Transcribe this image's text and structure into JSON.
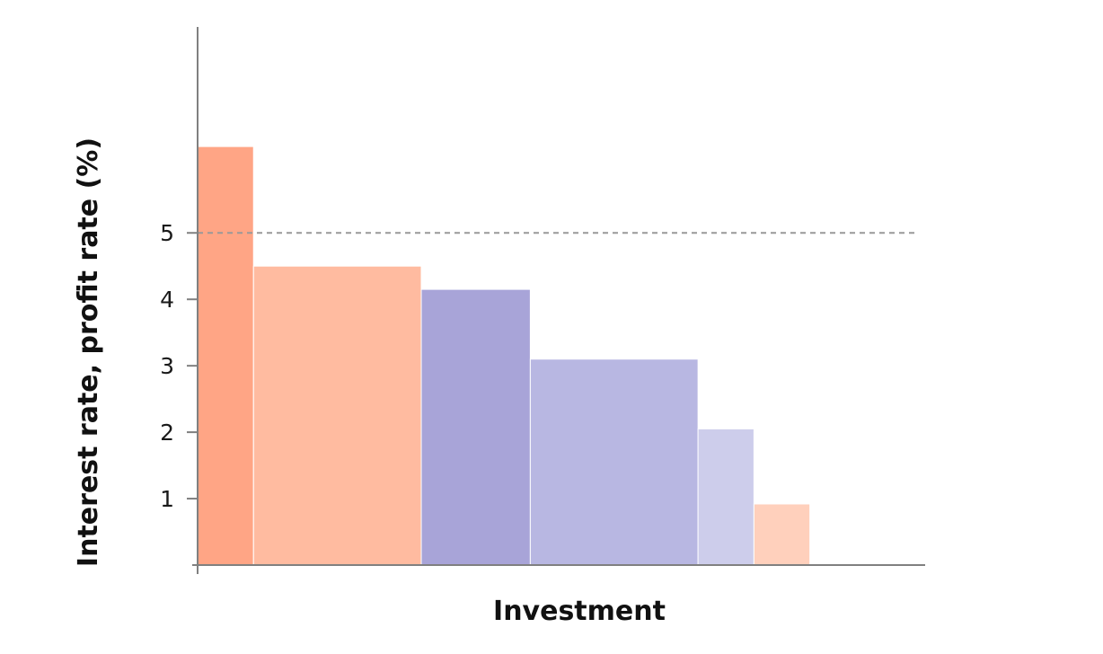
{
  "chart_data": {
    "type": "bar",
    "title": "",
    "xlabel": "Investment",
    "ylabel": "Interest rate, profit rate (%)",
    "ylim": [
      0,
      8.1
    ],
    "y_ticks": [
      "1",
      "2",
      "3",
      "4",
      "5"
    ],
    "y_tick_values": [
      1,
      2,
      3,
      4,
      5
    ],
    "reference_line": {
      "value": 5,
      "style": "dashed",
      "color": "#999999"
    },
    "grid": false,
    "bars": [
      {
        "value": 6.3,
        "width": 1.0,
        "color": "#ffa585"
      },
      {
        "value": 4.5,
        "width": 3.0,
        "color": "#ffbba0"
      },
      {
        "value": 4.15,
        "width": 1.95,
        "color": "#a8a4d8"
      },
      {
        "value": 3.1,
        "width": 3.0,
        "color": "#b8b7e2"
      },
      {
        "value": 2.05,
        "width": 1.0,
        "color": "#cdcdeb"
      },
      {
        "value": 0.92,
        "width": 1.0,
        "color": "#ffd0bc"
      }
    ],
    "x_total": 12.0
  }
}
